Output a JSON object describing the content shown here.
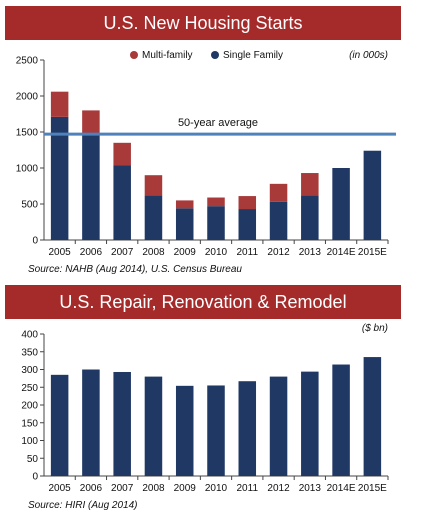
{
  "chart_data": [
    {
      "type": "bar",
      "stacked": true,
      "title": "U.S. New Housing Starts",
      "unit_note": "(in 000s)",
      "source": "Source: NAHB (Aug 2014), U.S. Census Bureau",
      "categories": [
        "2005",
        "2006",
        "2007",
        "2008",
        "2009",
        "2010",
        "2011",
        "2012",
        "2013",
        "2014E",
        "2015E"
      ],
      "series": [
        {
          "name": "Single Family",
          "color": "#1f3864",
          "values": [
            1710,
            1470,
            1040,
            620,
            440,
            470,
            430,
            530,
            620,
            1000,
            1240
          ]
        },
        {
          "name": "Multi-family",
          "color": "#a83a3a",
          "values": [
            350,
            330,
            310,
            280,
            110,
            120,
            180,
            250,
            310,
            null,
            null
          ]
        }
      ],
      "legend": [
        "Multi-family",
        "Single Family"
      ],
      "legend_position": "top",
      "ylim": [
        0,
        2500
      ],
      "yticks": [
        "0",
        "500",
        "1000",
        "1500",
        "2000",
        "2500"
      ],
      "reference_line": {
        "value": 1470,
        "label": "50-year average",
        "color": "#4f81bd"
      },
      "grid": false
    },
    {
      "type": "bar",
      "title": "U.S. Repair, Renovation & Remodel",
      "unit_note": "($ bn)",
      "source": "Source: HIRI (Aug 2014)",
      "categories": [
        "2005",
        "2006",
        "2007",
        "2008",
        "2009",
        "2010",
        "2011",
        "2012",
        "2013",
        "2014E",
        "2015E"
      ],
      "series": [
        {
          "color": "#1f3864",
          "values": [
            285,
            300,
            293,
            280,
            254,
            255,
            267,
            280,
            294,
            314,
            335
          ]
        }
      ],
      "ylim": [
        0,
        400
      ],
      "yticks": [
        "0",
        "50",
        "100",
        "150",
        "200",
        "250",
        "300",
        "350",
        "400"
      ],
      "grid": false
    }
  ]
}
